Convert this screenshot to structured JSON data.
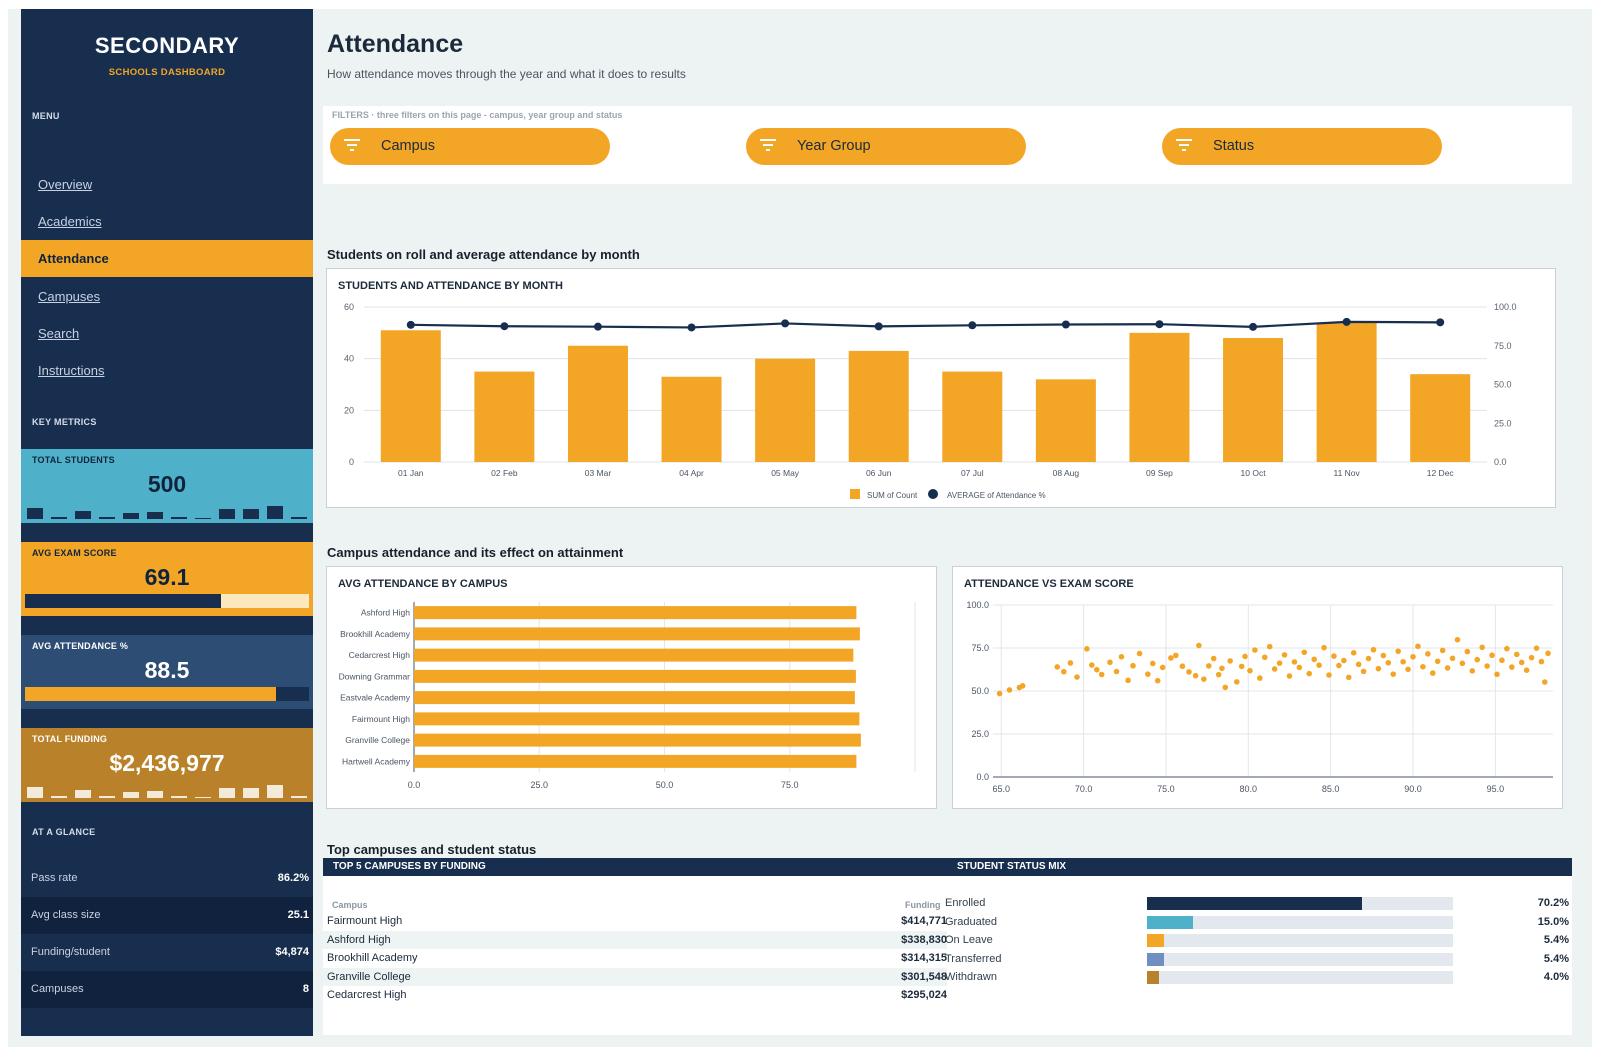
{
  "sidebar": {
    "brand": "SECONDARY",
    "brand_sub": "SCHOOLS DASHBOARD",
    "menu_label": "MENU",
    "nav": [
      {
        "label": "Overview",
        "active": false
      },
      {
        "label": "Academics",
        "active": false
      },
      {
        "label": "Attendance",
        "active": true
      },
      {
        "label": "Campuses",
        "active": false
      },
      {
        "label": "Search",
        "active": false
      },
      {
        "label": "Instructions",
        "active": false
      }
    ],
    "key_metrics_label": "KEY METRICS",
    "metrics": {
      "total_students": {
        "label": "TOTAL STUDENTS",
        "value": "500"
      },
      "avg_exam": {
        "label": "AVG EXAM SCORE",
        "value": "69.1",
        "progress": 0.69
      },
      "avg_attendance": {
        "label": "AVG ATTENDANCE %",
        "value": "88.5",
        "progress": 0.885
      },
      "total_funding": {
        "label": "TOTAL FUNDING",
        "value": "$2,436,977"
      }
    },
    "glance_label": "AT A GLANCE",
    "glance": [
      {
        "label": "Pass rate",
        "value": "86.2%"
      },
      {
        "label": "Avg class size",
        "value": "25.1"
      },
      {
        "label": "Funding/student",
        "value": "$4,874"
      },
      {
        "label": "Campuses",
        "value": "8"
      }
    ]
  },
  "header": {
    "title": "Attendance",
    "subtitle": "How attendance moves through the year and what it does to results"
  },
  "filters": {
    "note": "FILTERS  ·  three filters on this page - campus, year group and status",
    "items": [
      "Campus",
      "Year Group",
      "Status"
    ]
  },
  "sections": {
    "monthly": "Students on roll and average attendance by month",
    "campus": "Campus attendance and its effect on attainment",
    "bottom": "Top campuses and student status"
  },
  "colors": {
    "navy": "#172e4e",
    "orange": "#f3a626",
    "teal": "#4fb1c9",
    "steel": "#2d4d74",
    "gold": "#b9822a"
  },
  "chart_data": [
    {
      "type": "bar",
      "title": "STUDENTS AND ATTENDANCE BY MONTH",
      "categories": [
        "01 Jan",
        "02 Feb",
        "03 Mar",
        "04 Apr",
        "05 May",
        "06 Jun",
        "07 Jul",
        "08 Aug",
        "09 Sep",
        "10 Oct",
        "11 Nov",
        "12 Dec"
      ],
      "series": [
        {
          "name": "SUM of Count",
          "type": "bar",
          "axis": "left",
          "values": [
            51,
            35,
            45,
            33,
            40,
            43,
            35,
            32,
            50,
            48,
            54,
            34
          ]
        },
        {
          "name": "AVERAGE of Attendance %",
          "type": "line",
          "axis": "right",
          "values": [
            88.5,
            87.6,
            87.3,
            86.8,
            89.4,
            87.5,
            88.2,
            88.7,
            88.9,
            87.2,
            90.4,
            90.1
          ]
        }
      ],
      "ylim": [
        0,
        60
      ],
      "yticks": [
        "0",
        "20",
        "40",
        "60"
      ],
      "y2lim": [
        0,
        100
      ],
      "y2ticks": [
        "0.0",
        "25.0",
        "50.0",
        "75.0",
        "100.0"
      ],
      "legend": "bottom",
      "grid": true
    },
    {
      "type": "bar",
      "orientation": "horizontal",
      "title": "AVG ATTENDANCE BY CAMPUS",
      "categories": [
        "Ashford High",
        "Brookhill Academy",
        "Cedarcrest High",
        "Downing Grammar",
        "Eastvale Academy",
        "Fairmount High",
        "Granville College",
        "Hartwell Academy"
      ],
      "values": [
        88.3,
        89.0,
        87.7,
        88.2,
        88.0,
        88.9,
        89.2,
        88.3
      ],
      "xlim": [
        0,
        100
      ],
      "xticks": [
        "0.0",
        "25.0",
        "50.0",
        "75.0"
      ],
      "grid": true
    },
    {
      "type": "scatter",
      "title": "ATTENDANCE VS EXAM SCORE",
      "xlim": [
        64.5,
        98.5
      ],
      "ylim": [
        0,
        100
      ],
      "xticks": [
        "65.0",
        "70.0",
        "75.0",
        "80.0",
        "85.0",
        "90.0",
        "95.0"
      ],
      "yticks": [
        "0.0",
        "25.0",
        "50.0",
        "75.0",
        "100.0"
      ],
      "grid": true,
      "points": [
        [
          64.9,
          48.5
        ],
        [
          65.5,
          50.6
        ],
        [
          66.1,
          52.0
        ],
        [
          66.3,
          53.0
        ],
        [
          68.4,
          64.0
        ],
        [
          68.8,
          61.2
        ],
        [
          69.2,
          66.3
        ],
        [
          69.6,
          58.1
        ],
        [
          70.2,
          74.5
        ],
        [
          70.5,
          65.1
        ],
        [
          70.8,
          62.4
        ],
        [
          71.1,
          59.6
        ],
        [
          71.6,
          66.7
        ],
        [
          72.0,
          61.3
        ],
        [
          72.3,
          69.9
        ],
        [
          72.7,
          56.2
        ],
        [
          73.0,
          64.7
        ],
        [
          73.4,
          71.8
        ],
        [
          73.9,
          59.8
        ],
        [
          74.2,
          66.0
        ],
        [
          74.5,
          56.0
        ],
        [
          74.8,
          63.7
        ],
        [
          75.3,
          69.2
        ],
        [
          75.6,
          70.7
        ],
        [
          76.0,
          64.4
        ],
        [
          76.4,
          61.1
        ],
        [
          76.8,
          58.9
        ],
        [
          77.0,
          76.5
        ],
        [
          77.3,
          56.9
        ],
        [
          77.6,
          64.6
        ],
        [
          77.9,
          68.9
        ],
        [
          78.2,
          59.5
        ],
        [
          78.4,
          63.2
        ],
        [
          78.6,
          52.1
        ],
        [
          78.9,
          67.5
        ],
        [
          79.3,
          55.3
        ],
        [
          79.6,
          64.3
        ],
        [
          79.8,
          70.1
        ],
        [
          80.1,
          61.8
        ],
        [
          80.4,
          73.8
        ],
        [
          80.7,
          57.5
        ],
        [
          81.0,
          69.6
        ],
        [
          81.3,
          75.8
        ],
        [
          81.6,
          62.8
        ],
        [
          81.9,
          66.2
        ],
        [
          82.2,
          71.0
        ],
        [
          82.5,
          58.7
        ],
        [
          82.8,
          66.9
        ],
        [
          83.1,
          63.7
        ],
        [
          83.4,
          72.5
        ],
        [
          83.7,
          60.1
        ],
        [
          84.0,
          68.4
        ],
        [
          84.3,
          65.0
        ],
        [
          84.6,
          75.2
        ],
        [
          84.9,
          59.3
        ],
        [
          85.2,
          70.3
        ],
        [
          85.5,
          64.8
        ],
        [
          85.8,
          67.7
        ],
        [
          86.1,
          57.9
        ],
        [
          86.4,
          72.2
        ],
        [
          86.7,
          65.5
        ],
        [
          87.0,
          61.4
        ],
        [
          87.3,
          68.9
        ],
        [
          87.6,
          74.0
        ],
        [
          87.9,
          63.0
        ],
        [
          88.2,
          70.6
        ],
        [
          88.5,
          66.4
        ],
        [
          88.8,
          59.8
        ],
        [
          89.1,
          73.1
        ],
        [
          89.4,
          67.0
        ],
        [
          89.7,
          62.6
        ],
        [
          90.0,
          69.9
        ],
        [
          90.3,
          76.0
        ],
        [
          90.6,
          64.1
        ],
        [
          90.9,
          71.6
        ],
        [
          91.2,
          60.4
        ],
        [
          91.5,
          67.3
        ],
        [
          91.8,
          73.6
        ],
        [
          92.1,
          63.4
        ],
        [
          92.4,
          69.0
        ],
        [
          92.7,
          79.8
        ],
        [
          93.0,
          66.1
        ],
        [
          93.3,
          72.9
        ],
        [
          93.6,
          61.7
        ],
        [
          93.9,
          68.2
        ],
        [
          94.2,
          75.4
        ],
        [
          94.5,
          64.5
        ],
        [
          94.8,
          70.8
        ],
        [
          95.1,
          59.7
        ],
        [
          95.4,
          67.9
        ],
        [
          95.7,
          74.6
        ],
        [
          96.0,
          63.9
        ],
        [
          96.3,
          71.3
        ],
        [
          96.6,
          66.6
        ],
        [
          96.9,
          62.1
        ],
        [
          97.2,
          69.4
        ],
        [
          97.5,
          74.9
        ],
        [
          97.8,
          67.1
        ],
        [
          98.0,
          55.2
        ],
        [
          98.2,
          71.9
        ]
      ]
    }
  ],
  "top_campuses": {
    "header": "TOP 5 CAMPUSES BY FUNDING",
    "col_campus": "Campus",
    "col_funding": "Funding",
    "rows": [
      {
        "name": "Fairmount High",
        "value": "$414,771"
      },
      {
        "name": "Ashford High",
        "value": "$338,830"
      },
      {
        "name": "Brookhill Academy",
        "value": "$314,315"
      },
      {
        "name": "Granville College",
        "value": "$301,548"
      },
      {
        "name": "Cedarcrest High",
        "value": "$295,024"
      }
    ]
  },
  "status_mix": {
    "header": "STUDENT STATUS MIX",
    "rows": [
      {
        "label": "Enrolled",
        "value": "70.2%",
        "share": 0.702,
        "color": "#172e4e"
      },
      {
        "label": "Graduated",
        "value": "15.0%",
        "share": 0.15,
        "color": "#4fb1c9"
      },
      {
        "label": "On Leave",
        "value": "5.4%",
        "share": 0.054,
        "color": "#f3a626"
      },
      {
        "label": "Transferred",
        "value": "5.4%",
        "share": 0.054,
        "color": "#6e8fc0"
      },
      {
        "label": "Withdrawn",
        "value": "4.0%",
        "share": 0.04,
        "color": "#b9822a"
      }
    ]
  }
}
